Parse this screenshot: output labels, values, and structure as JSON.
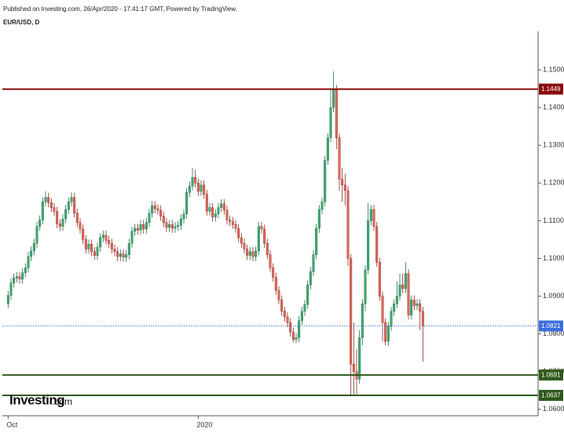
{
  "chart_data": {
    "type": "candlestick",
    "title": "Published on Investing.com, 26/Apr/2020 - 17:41:17 GMT, Powered by TradingView.",
    "symbol": "EUR/USD, D",
    "up_color": "#3daa72",
    "down_color": "#e0685c",
    "up_edge": "#1f6b47",
    "down_edge": "#8c2a22",
    "xlim": [
      -2,
      184
    ],
    "xticks": [
      {
        "value": 0,
        "label": "Oct"
      },
      {
        "value": 66,
        "label": "2020"
      }
    ],
    "ylim": [
      1.0583,
      1.1602
    ],
    "yticks": [
      {
        "value": 1.06,
        "label": "1.0600"
      },
      {
        "value": 1.07,
        "label": "1.0700"
      },
      {
        "value": 1.08,
        "label": "1.0800"
      },
      {
        "value": 1.09,
        "label": "1.0900"
      },
      {
        "value": 1.1,
        "label": "1.1000"
      },
      {
        "value": 1.11,
        "label": "1.1100"
      },
      {
        "value": 1.12,
        "label": "1.1200"
      },
      {
        "value": 1.13,
        "label": "1.1300"
      },
      {
        "value": 1.14,
        "label": "1.1400"
      },
      {
        "value": 1.15,
        "label": "1.1500"
      }
    ],
    "hlines": [
      {
        "value": 1.1449,
        "color": "#8b0a0a",
        "style": "solid"
      },
      {
        "value": 1.0821,
        "color": "#3d6ee0",
        "style": "dotted"
      },
      {
        "value": 1.0691,
        "color": "#2f5a1c",
        "style": "solid"
      },
      {
        "value": 1.0637,
        "color": "#2f5a1c",
        "style": "solid"
      }
    ],
    "open": [
      1.088,
      1.0902,
      1.0935,
      1.0948,
      1.0952,
      1.0945,
      1.0962,
      1.0975,
      1.1005,
      1.102,
      1.104,
      1.1085,
      1.1102,
      1.115,
      1.1162,
      1.1148,
      1.1135,
      1.1125,
      1.1092,
      1.1085,
      1.1105,
      1.113,
      1.115,
      1.1162,
      1.112,
      1.1095,
      1.1078,
      1.105,
      1.1025,
      1.1038,
      1.1018,
      1.1008,
      1.103,
      1.1055,
      1.1062,
      1.1048,
      1.104,
      1.1025,
      1.1018,
      1.1005,
      1.1012,
      1.1003,
      1.101,
      1.104,
      1.1072,
      1.108,
      1.1075,
      1.109,
      1.1078,
      1.1095,
      1.112,
      1.114,
      1.1132,
      1.1128,
      1.1112,
      1.1095,
      1.1082,
      1.109,
      1.108,
      1.1085,
      1.1088,
      1.1105,
      1.1118,
      1.1175,
      1.1192,
      1.1215,
      1.12,
      1.1178,
      1.1195,
      1.117,
      1.1125,
      1.1135,
      1.111,
      1.1118,
      1.1135,
      1.1145,
      1.1128,
      1.1102,
      1.1098,
      1.109,
      1.108,
      1.1055,
      1.104,
      1.1025,
      1.1008,
      1.1018,
      1.1005,
      1.102,
      1.1085,
      1.1078,
      1.104,
      1.101,
      1.0975,
      1.095,
      1.0915,
      1.089,
      1.086,
      1.0845,
      1.083,
      1.0805,
      1.0785,
      1.079,
      1.0835,
      1.086,
      1.0878,
      1.093,
      1.0965,
      1.101,
      1.108,
      1.113,
      1.115,
      1.126,
      1.132,
      1.14,
      1.1448,
      1.132,
      1.121,
      1.1195,
      1.118,
      1.1,
      1.072,
      1.07,
      1.068,
      1.079,
      1.088,
      1.097,
      1.11,
      1.113,
      1.1085,
      1.099,
      1.09,
      1.083,
      1.078,
      1.082,
      1.086,
      1.088,
      1.09,
      1.093,
      1.092,
      1.096,
      1.085,
      1.089,
      1.0875,
      1.088,
      1.086
    ],
    "high": [
      1.0914,
      1.0947,
      1.096,
      1.0964,
      1.0964,
      1.0974,
      1.0987,
      1.1017,
      1.1032,
      1.1052,
      1.1097,
      1.1114,
      1.1162,
      1.1178,
      1.1174,
      1.116,
      1.1147,
      1.1137,
      1.1104,
      1.1117,
      1.1142,
      1.1162,
      1.1176,
      1.1174,
      1.1132,
      1.1107,
      1.109,
      1.1062,
      1.105,
      1.105,
      1.103,
      1.1042,
      1.1067,
      1.1074,
      1.1074,
      1.106,
      1.1052,
      1.1037,
      1.103,
      1.1024,
      1.1024,
      1.1022,
      1.1052,
      1.1084,
      1.1092,
      1.1092,
      1.1102,
      1.1102,
      1.1107,
      1.1132,
      1.1152,
      1.1152,
      1.1144,
      1.114,
      1.1124,
      1.1107,
      1.1102,
      1.1102,
      1.1097,
      1.11,
      1.1117,
      1.113,
      1.1187,
      1.1204,
      1.124,
      1.1235,
      1.1212,
      1.1207,
      1.1207,
      1.1182,
      1.1147,
      1.1147,
      1.113,
      1.1147,
      1.1157,
      1.1157,
      1.114,
      1.1114,
      1.111,
      1.1102,
      1.1092,
      1.1067,
      1.1052,
      1.1037,
      1.103,
      1.103,
      1.1032,
      1.1097,
      1.1097,
      1.109,
      1.1052,
      1.1022,
      1.0987,
      1.0962,
      1.0927,
      1.0902,
      1.0872,
      1.0857,
      1.0842,
      1.0817,
      1.0802,
      1.0847,
      1.0872,
      1.089,
      1.0942,
      1.0977,
      1.1022,
      1.1092,
      1.1142,
      1.1162,
      1.1272,
      1.1332,
      1.145,
      1.1496,
      1.146,
      1.1332,
      1.124,
      1.1225,
      1.1192,
      1.1012,
      1.083,
      1.076,
      1.081,
      1.0892,
      1.0982,
      1.1147,
      1.1142,
      1.1142,
      1.1097,
      1.1002,
      1.0912,
      1.0842,
      1.0832,
      1.0872,
      1.0892,
      1.094,
      1.096,
      1.096,
      1.099,
      1.0972,
      1.0902,
      1.0902,
      1.0892,
      1.0892,
      1.0872
    ],
    "low": [
      1.0868,
      1.089,
      1.0923,
      1.0936,
      1.0933,
      1.0933,
      1.095,
      1.0963,
      1.0993,
      1.1008,
      1.1028,
      1.1073,
      1.109,
      1.1138,
      1.1136,
      1.1123,
      1.1113,
      1.108,
      1.1073,
      1.1073,
      1.1093,
      1.1118,
      1.1138,
      1.1108,
      1.1083,
      1.1066,
      1.1038,
      1.1013,
      1.1013,
      1.1006,
      1.0996,
      1.0996,
      1.1018,
      1.1043,
      1.1036,
      1.1028,
      1.1013,
      1.1006,
      1.0993,
      1.0993,
      1.0991,
      1.0991,
      1.0998,
      1.1028,
      1.106,
      1.1063,
      1.1063,
      1.1066,
      1.1066,
      1.1083,
      1.1108,
      1.112,
      1.1116,
      1.11,
      1.1083,
      1.107,
      1.107,
      1.1068,
      1.1068,
      1.1073,
      1.1076,
      1.1093,
      1.1106,
      1.1163,
      1.118,
      1.1188,
      1.1166,
      1.1166,
      1.1158,
      1.1113,
      1.1113,
      1.1098,
      1.1098,
      1.1106,
      1.1123,
      1.1116,
      1.109,
      1.1086,
      1.1078,
      1.1068,
      1.1043,
      1.1028,
      1.1013,
      1.0996,
      1.0996,
      1.0993,
      1.0993,
      1.1008,
      1.1066,
      1.1028,
      1.0998,
      1.0963,
      1.0938,
      1.0903,
      1.0878,
      1.0848,
      1.0833,
      1.0818,
      1.0793,
      1.0778,
      1.0776,
      1.0778,
      1.0823,
      1.0848,
      1.0866,
      1.0918,
      1.0953,
      1.0998,
      1.1068,
      1.1118,
      1.1138,
      1.1248,
      1.1308,
      1.1388,
      1.129,
      1.118,
      1.115,
      1.114,
      1.098,
      1.0636,
      1.064,
      1.0636,
      1.0668,
      1.077,
      1.086,
      1.0958,
      1.1088,
      1.1073,
      1.0978,
      1.0888,
      1.078,
      1.077,
      1.0768,
      1.0808,
      1.0848,
      1.0868,
      1.0888,
      1.0908,
      1.0908,
      1.0838,
      1.0838,
      1.0863,
      1.0863,
      1.081,
      1.0727
    ],
    "close": [
      1.0902,
      1.0935,
      1.0948,
      1.0952,
      1.0945,
      1.0962,
      1.0975,
      1.1005,
      1.102,
      1.104,
      1.1085,
      1.1102,
      1.115,
      1.1162,
      1.1148,
      1.1135,
      1.1125,
      1.1092,
      1.1085,
      1.1105,
      1.113,
      1.115,
      1.1162,
      1.112,
      1.1095,
      1.1078,
      1.105,
      1.1025,
      1.1038,
      1.1018,
      1.1008,
      1.103,
      1.1055,
      1.1062,
      1.1048,
      1.104,
      1.1025,
      1.1018,
      1.1005,
      1.1012,
      1.1003,
      1.101,
      1.104,
      1.1072,
      1.108,
      1.1075,
      1.109,
      1.1078,
      1.1095,
      1.112,
      1.114,
      1.1132,
      1.1128,
      1.1112,
      1.1095,
      1.1082,
      1.109,
      1.108,
      1.1085,
      1.1088,
      1.1105,
      1.1118,
      1.1175,
      1.1192,
      1.1215,
      1.12,
      1.1178,
      1.1195,
      1.117,
      1.1125,
      1.1135,
      1.111,
      1.1118,
      1.1135,
      1.1145,
      1.1128,
      1.1102,
      1.1098,
      1.109,
      1.108,
      1.1055,
      1.104,
      1.1025,
      1.1008,
      1.1018,
      1.1005,
      1.102,
      1.1085,
      1.1078,
      1.104,
      1.101,
      1.0975,
      1.095,
      1.0915,
      1.089,
      1.086,
      1.0845,
      1.083,
      1.0805,
      1.0785,
      1.079,
      1.0835,
      1.086,
      1.0878,
      1.093,
      1.0965,
      1.101,
      1.108,
      1.113,
      1.115,
      1.126,
      1.132,
      1.14,
      1.1448,
      1.132,
      1.121,
      1.1195,
      1.118,
      1.1,
      1.072,
      1.07,
      1.068,
      1.079,
      1.088,
      1.097,
      1.11,
      1.113,
      1.1085,
      1.099,
      1.09,
      1.083,
      1.078,
      1.082,
      1.086,
      1.088,
      1.09,
      1.093,
      1.092,
      1.096,
      1.085,
      1.089,
      1.0875,
      1.088,
      1.086,
      1.0821
    ]
  },
  "logo": {
    "brand": "Investing",
    "suffix": ".com"
  }
}
